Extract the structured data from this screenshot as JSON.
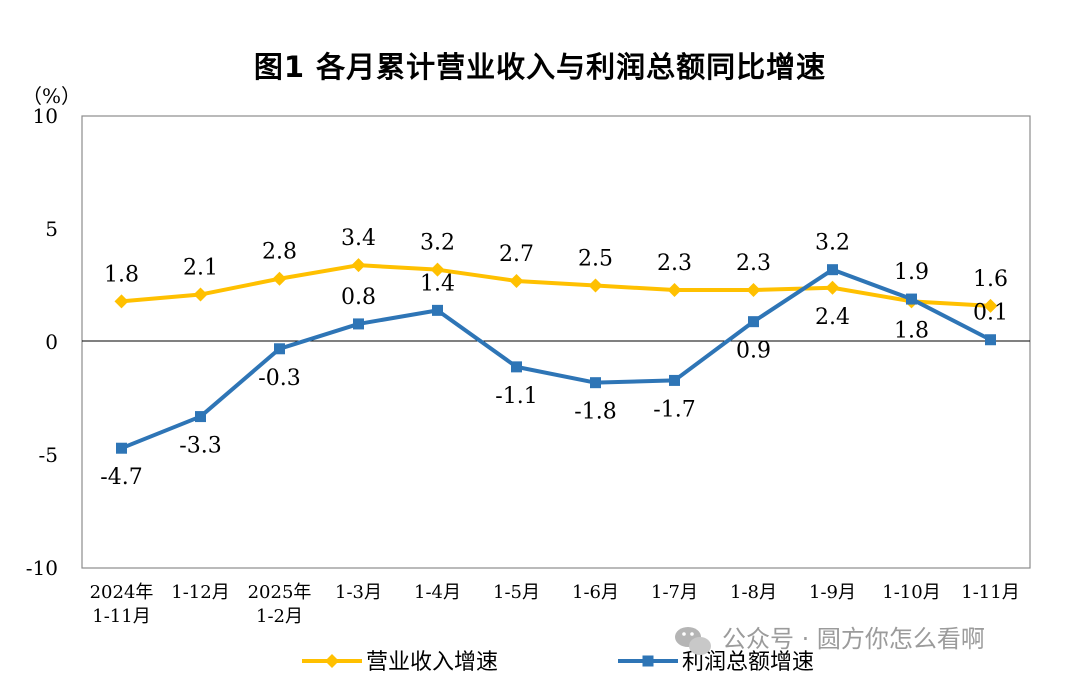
{
  "chart_data": {
    "type": "line",
    "title": "图1  各月累计营业收入与利润总额同比增速",
    "unit_label": "（%）",
    "ylim": [
      -10,
      10
    ],
    "yticks": [
      10,
      5,
      0,
      -5,
      -10
    ],
    "categories": [
      [
        "2024年",
        "1-11月"
      ],
      [
        "1-12月"
      ],
      [
        "2025年",
        "1-2月"
      ],
      [
        "1-3月"
      ],
      [
        "1-4月"
      ],
      [
        "1-5月"
      ],
      [
        "1-6月"
      ],
      [
        "1-7月"
      ],
      [
        "1-8月"
      ],
      [
        "1-9月"
      ],
      [
        "1-10月"
      ],
      [
        "1-11月"
      ]
    ],
    "grid": false,
    "legend_position": "bottom",
    "series": [
      {
        "name": "营业收入增速",
        "color": "#FFC000",
        "marker": "diamond",
        "values": [
          1.8,
          2.1,
          2.8,
          3.4,
          3.2,
          2.7,
          2.5,
          2.3,
          2.3,
          2.4,
          1.8,
          1.6
        ],
        "label_side": [
          "above",
          "above",
          "above",
          "above",
          "above",
          "above",
          "above",
          "above",
          "above",
          "below",
          "below",
          "above"
        ]
      },
      {
        "name": "利润总额增速",
        "color": "#2E75B6",
        "marker": "square",
        "values": [
          -4.7,
          -3.3,
          -0.3,
          0.8,
          1.4,
          -1.1,
          -1.8,
          -1.7,
          0.9,
          3.2,
          1.9,
          0.1
        ],
        "label_side": [
          "below",
          "below",
          "below",
          "above",
          "above",
          "below",
          "below",
          "below",
          "below",
          "above",
          "above",
          "above"
        ]
      }
    ]
  },
  "watermark": "公众号 · 圆方你怎么看啊"
}
